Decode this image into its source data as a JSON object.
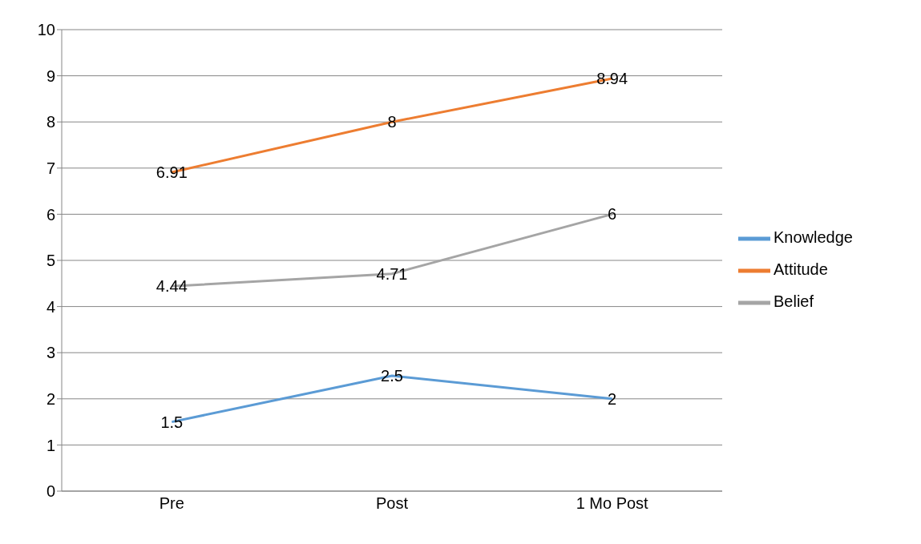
{
  "chart_data": {
    "type": "line",
    "categories": [
      "Pre",
      "Post",
      "1 Mo Post"
    ],
    "series": [
      {
        "name": "Knowledge",
        "color": "#5b9bd5",
        "values": [
          1.5,
          2.5,
          2
        ]
      },
      {
        "name": "Attitude",
        "color": "#ed7d31",
        "values": [
          6.91,
          8,
          8.94
        ]
      },
      {
        "name": "Belief",
        "color": "#a5a5a5",
        "values": [
          4.44,
          4.71,
          6
        ]
      }
    ],
    "ylim": [
      0,
      10
    ],
    "yticks": [
      0,
      1,
      2,
      3,
      4,
      5,
      6,
      7,
      8,
      9,
      10
    ],
    "grid": "y",
    "legend": "right",
    "data_labels": true,
    "marker": "none"
  }
}
